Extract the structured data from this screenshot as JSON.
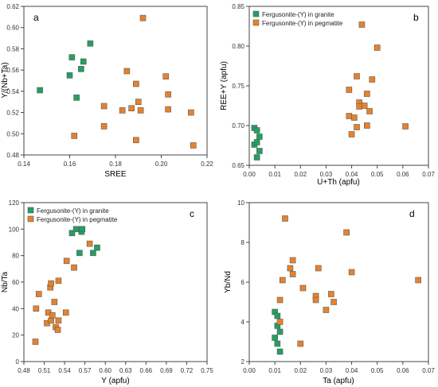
{
  "colors": {
    "granite": "#22a061",
    "pegmatite": "#e8822a",
    "marker_stroke": "#5a5a5a",
    "axis": "#444444"
  },
  "legend": {
    "granite": "Fergusonite-(Y) in granite",
    "pegmatite": "Fergusonite-(Y) in pegmatite"
  },
  "chart_data": [
    {
      "type": "scatter",
      "panel_label": "a",
      "xlabel": "SREE",
      "ylabel": "Y/(Nb+Ta)",
      "xlim": [
        0.14,
        0.22
      ],
      "ylim": [
        0.48,
        0.62
      ],
      "xticks": [
        "0.14",
        "0.16",
        "0.18",
        "0.20",
        "0.22"
      ],
      "yticks": [
        "0.48",
        "0.50",
        "0.52",
        "0.54",
        "0.56",
        "0.58",
        "0.60",
        "0.62"
      ],
      "legend_position": "none",
      "series": [
        {
          "key": "granite",
          "x": [
            0.147,
            0.16,
            0.161,
            0.163,
            0.165,
            0.166,
            0.169
          ],
          "y": [
            0.541,
            0.555,
            0.572,
            0.534,
            0.561,
            0.568,
            0.585
          ]
        },
        {
          "key": "pegmatite",
          "x": [
            0.162,
            0.175,
            0.175,
            0.183,
            0.185,
            0.187,
            0.189,
            0.189,
            0.19,
            0.191,
            0.192,
            0.202,
            0.203,
            0.203,
            0.213,
            0.214
          ],
          "y": [
            0.498,
            0.526,
            0.507,
            0.522,
            0.559,
            0.524,
            0.494,
            0.547,
            0.53,
            0.522,
            0.609,
            0.554,
            0.537,
            0.523,
            0.52,
            0.489
          ]
        }
      ]
    },
    {
      "type": "scatter",
      "panel_label": "b",
      "xlabel": "U+Th (apfu)",
      "ylabel": "REE+Y (apfu)",
      "xlim": [
        0.0,
        0.07
      ],
      "ylim": [
        0.65,
        0.85
      ],
      "xticks": [
        "0.00",
        "0.01",
        "0.02",
        "0.03",
        "0.04",
        "0.05",
        "0.06",
        "0.07"
      ],
      "yticks": [
        "0.65",
        "0.70",
        "0.75",
        "0.80",
        "0.85"
      ],
      "legend_position": "top-left",
      "series": [
        {
          "key": "granite",
          "x": [
            0.002,
            0.002,
            0.003,
            0.003,
            0.003,
            0.004,
            0.004
          ],
          "y": [
            0.676,
            0.697,
            0.694,
            0.66,
            0.679,
            0.668,
            0.686
          ]
        },
        {
          "key": "pegmatite",
          "x": [
            0.039,
            0.039,
            0.04,
            0.041,
            0.042,
            0.042,
            0.043,
            0.043,
            0.044,
            0.045,
            0.046,
            0.046,
            0.047,
            0.048,
            0.05,
            0.061
          ],
          "y": [
            0.712,
            0.745,
            0.689,
            0.71,
            0.762,
            0.698,
            0.729,
            0.724,
            0.827,
            0.725,
            0.74,
            0.7,
            0.718,
            0.758,
            0.798,
            0.699
          ]
        }
      ]
    },
    {
      "type": "scatter",
      "panel_label": "c",
      "xlabel": "Y (apfu)",
      "ylabel": "Nb/Ta",
      "xlim": [
        0.48,
        0.75
      ],
      "ylim": [
        0,
        120
      ],
      "xticks": [
        "0.48",
        "0.51",
        "0.54",
        "0.57",
        "0.60",
        "0.63",
        "0.66",
        "0.69",
        "0.72",
        "0.75"
      ],
      "yticks": [
        "0",
        "20",
        "40",
        "60",
        "80",
        "100",
        "120"
      ],
      "legend_position": "top-left",
      "series": [
        {
          "key": "granite",
          "x": [
            0.551,
            0.557,
            0.562,
            0.565,
            0.566,
            0.582,
            0.588
          ],
          "y": [
            97,
            100,
            82,
            98,
            100,
            82,
            86
          ]
        },
        {
          "key": "pegmatite",
          "x": [
            0.497,
            0.498,
            0.502,
            0.514,
            0.516,
            0.519,
            0.52,
            0.52,
            0.522,
            0.525,
            0.527,
            0.53,
            0.531,
            0.531,
            0.542,
            0.543,
            0.554,
            0.577
          ],
          "y": [
            15,
            40,
            51,
            29,
            37,
            56,
            59,
            31,
            35,
            45,
            26,
            24,
            61,
            31,
            37,
            76,
            71,
            89
          ]
        }
      ]
    },
    {
      "type": "scatter",
      "panel_label": "d",
      "xlabel": "Ta (apfu)",
      "ylabel": "Yb/Nd",
      "xlim": [
        0.0,
        0.07
      ],
      "ylim": [
        2,
        10
      ],
      "xticks": [
        "0.00",
        "0.01",
        "0.02",
        "0.03",
        "0.04",
        "0.05",
        "0.06",
        "0.07"
      ],
      "yticks": [
        "2",
        "4",
        "6",
        "8",
        "10"
      ],
      "legend_position": "none",
      "series": [
        {
          "key": "granite",
          "x": [
            0.01,
            0.01,
            0.011,
            0.011,
            0.011,
            0.012,
            0.012
          ],
          "y": [
            4.5,
            3.2,
            4.3,
            3.8,
            2.9,
            3.5,
            2.5
          ]
        },
        {
          "key": "pegmatite",
          "x": [
            0.012,
            0.012,
            0.013,
            0.014,
            0.016,
            0.017,
            0.017,
            0.02,
            0.021,
            0.026,
            0.026,
            0.027,
            0.03,
            0.032,
            0.033,
            0.038,
            0.04,
            0.066
          ],
          "y": [
            4.0,
            5.1,
            6.1,
            9.2,
            6.7,
            6.4,
            7.1,
            2.9,
            5.7,
            5.3,
            5.1,
            6.7,
            4.6,
            5.4,
            5.0,
            8.5,
            6.5,
            6.1
          ]
        }
      ]
    }
  ]
}
